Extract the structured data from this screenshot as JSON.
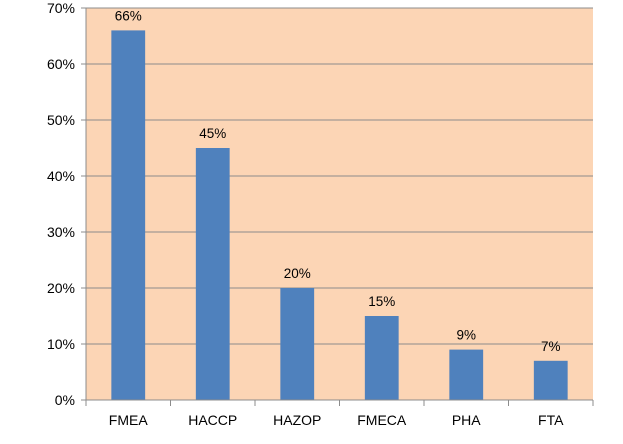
{
  "chart_data": {
    "type": "bar",
    "title": "",
    "xlabel": "",
    "ylabel": "",
    "categories": [
      "FMEA",
      "HACCP",
      "HAZOP",
      "FMECA",
      "PHA",
      "FTA"
    ],
    "values": [
      66,
      45,
      20,
      15,
      9,
      7
    ],
    "data_labels": [
      "66%",
      "45%",
      "20%",
      "15%",
      "9%",
      "7%"
    ],
    "ylim": [
      0,
      70
    ],
    "y_ticks": [
      0,
      10,
      20,
      30,
      40,
      50,
      60,
      70
    ],
    "y_tick_labels": [
      "0%",
      "10%",
      "20%",
      "30%",
      "40%",
      "50%",
      "60%",
      "70%"
    ],
    "grid": true,
    "legend": "none"
  },
  "colors": {
    "plot_background": "#fcd5b5",
    "bar": "#4f81bd",
    "gridline": "#8c8c8c",
    "axis": "#8c8c8c"
  }
}
